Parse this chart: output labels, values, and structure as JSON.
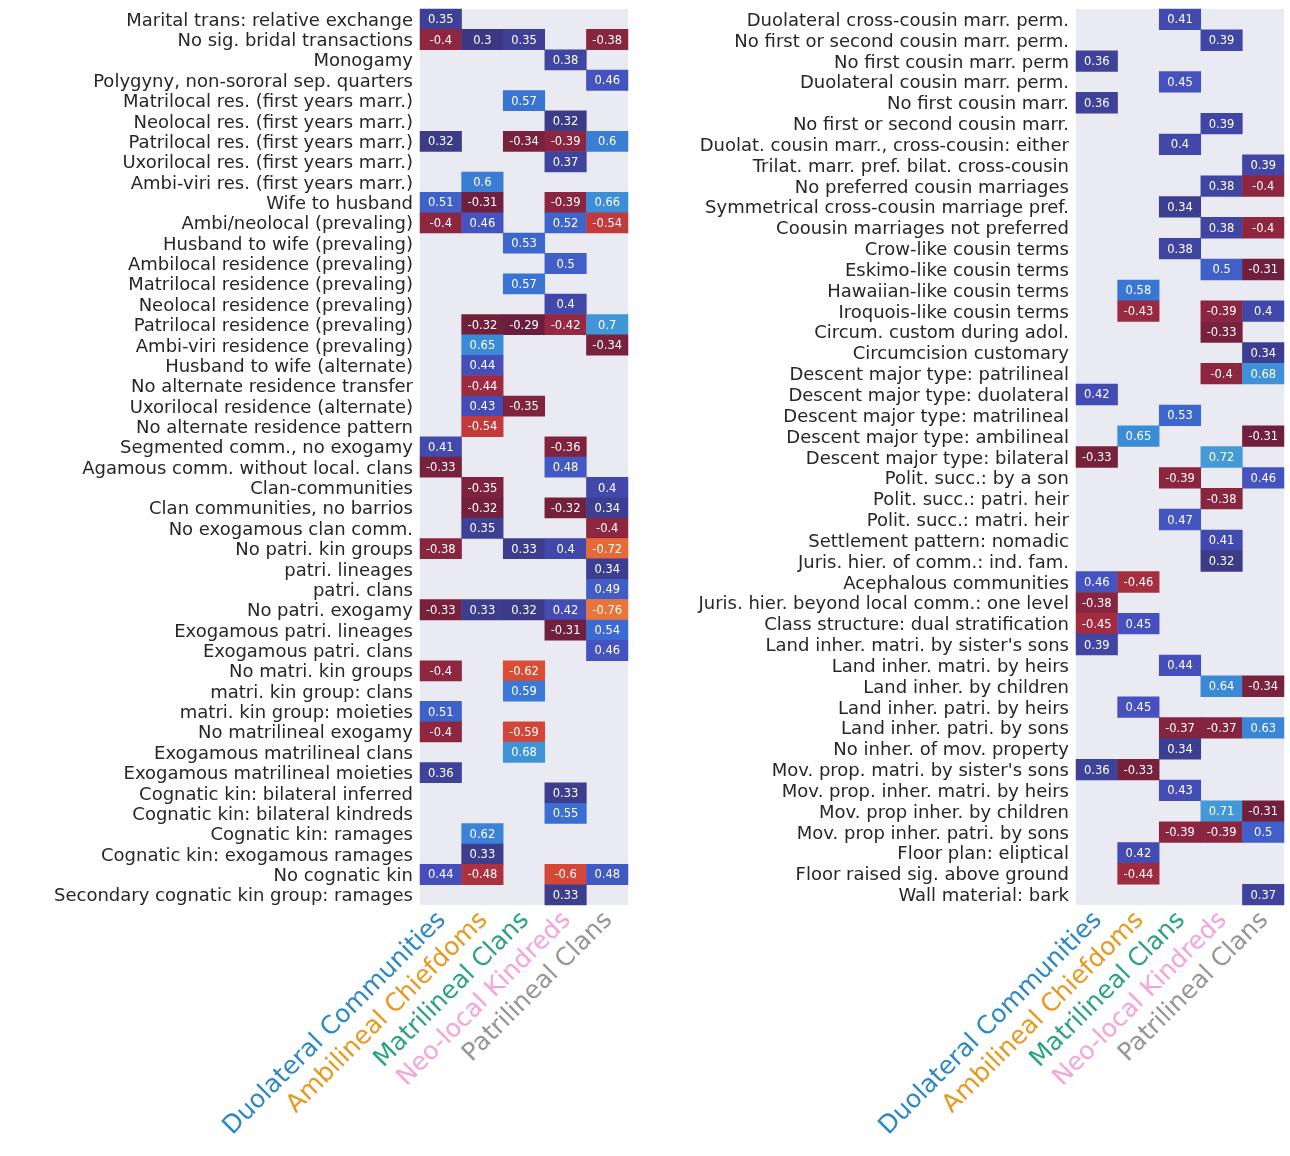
{
  "chart_data": [
    {
      "type": "heatmap",
      "data_labels": true,
      "categories": [
        "Duolateral Communities",
        "Ambilineal Chiefdoms",
        "Matrilineal Clans",
        "Neo-local Kindreds",
        "Patrilineal Clans"
      ],
      "colors": [
        "#2a88c6",
        "#e6981c",
        "#2aa37e",
        "#f5a3d8",
        "#969696"
      ],
      "y_categories": [
        "Marital trans: relative exchange",
        "No sig. bridal transactions",
        "Monogamy",
        "Polygyny, non-sororal sep. quarters",
        "Matrilocal res. (first years marr.)",
        "Neolocal res. (first years marr.)",
        "Patrilocal res. (first years marr.)",
        "Uxorilocal res. (first years marr.)",
        "Ambi-viri res. (first years marr.)",
        "Wife to husband",
        "Ambi/neolocal (prevaling)",
        "Husband to wife (prevaling)",
        "Ambilocal residence (prevaling)",
        "Matrilocal residence (prevaling)",
        "Neolocal residence (prevaling)",
        "Patrilocal residence (prevaling)",
        "Ambi-viri residence (prevaling)",
        "Husband to wife (alternate)",
        "No alternate residence transfer",
        "Uxorilocal residence (alternate)",
        "No alternate residence pattern",
        "Segmented comm., no exogamy",
        "Agamous comm. without local. clans",
        "Clan-communities",
        "Clan communities, no barrios",
        "No exogamous clan comm.",
        "No patri. kin groups",
        "patri. lineages",
        "patri. clans",
        "No patri. exogamy",
        "Exogamous patri. lineages",
        "Exogamous patri. clans",
        "No matri. kin groups",
        "matri. kin group: clans",
        "matri. kin group: moieties",
        "No matrilineal exogamy",
        "Exogamous matrilineal clans",
        "Exogamous matrilineal moieties",
        "Cognatic kin: bilateral inferred",
        "Cognatic kin: bilateral kindreds",
        "Cognatic kin: ramages",
        "Cognatic kin: exogamous ramages",
        "No cognatic kin",
        "Secondary cognatic kin group: ramages"
      ],
      "cells": [
        [
          0.35,
          null,
          null,
          null,
          null
        ],
        [
          -0.4,
          0.3,
          0.35,
          null,
          -0.38
        ],
        [
          null,
          null,
          null,
          0.38,
          null
        ],
        [
          null,
          null,
          null,
          null,
          0.46
        ],
        [
          null,
          null,
          0.57,
          null,
          null
        ],
        [
          null,
          null,
          null,
          0.32,
          null
        ],
        [
          0.32,
          null,
          -0.34,
          -0.39,
          0.6
        ],
        [
          null,
          null,
          null,
          0.37,
          null
        ],
        [
          null,
          0.6,
          null,
          null,
          null
        ],
        [
          0.51,
          -0.31,
          null,
          -0.39,
          0.66
        ],
        [
          -0.4,
          0.46,
          null,
          0.52,
          -0.54
        ],
        [
          null,
          null,
          0.53,
          null,
          null
        ],
        [
          null,
          null,
          null,
          0.5,
          null
        ],
        [
          null,
          null,
          0.57,
          null,
          null
        ],
        [
          null,
          null,
          null,
          0.4,
          null
        ],
        [
          null,
          -0.32,
          -0.29,
          -0.42,
          0.7
        ],
        [
          null,
          0.65,
          null,
          null,
          -0.34
        ],
        [
          null,
          0.44,
          null,
          null,
          null
        ],
        [
          null,
          -0.44,
          null,
          null,
          null
        ],
        [
          null,
          0.43,
          -0.35,
          null,
          null
        ],
        [
          null,
          -0.54,
          null,
          null,
          null
        ],
        [
          0.41,
          null,
          null,
          -0.36,
          null
        ],
        [
          -0.33,
          null,
          null,
          0.48,
          null
        ],
        [
          null,
          -0.35,
          null,
          null,
          0.4
        ],
        [
          null,
          -0.32,
          null,
          -0.32,
          0.34
        ],
        [
          null,
          0.35,
          null,
          null,
          -0.4
        ],
        [
          -0.38,
          null,
          0.33,
          0.4,
          -0.72
        ],
        [
          null,
          null,
          null,
          null,
          0.34
        ],
        [
          null,
          null,
          null,
          null,
          0.49
        ],
        [
          -0.33,
          0.33,
          0.32,
          0.42,
          -0.76
        ],
        [
          null,
          null,
          null,
          -0.31,
          0.54
        ],
        [
          null,
          null,
          null,
          null,
          0.46
        ],
        [
          -0.4,
          null,
          -0.62,
          null,
          null
        ],
        [
          null,
          null,
          0.59,
          null,
          null
        ],
        [
          0.51,
          null,
          null,
          null,
          null
        ],
        [
          -0.4,
          null,
          -0.59,
          null,
          null
        ],
        [
          null,
          null,
          0.68,
          null,
          null
        ],
        [
          0.36,
          null,
          null,
          null,
          null
        ],
        [
          null,
          null,
          null,
          0.33,
          null
        ],
        [
          null,
          null,
          null,
          0.55,
          null
        ],
        [
          null,
          0.62,
          null,
          null,
          null
        ],
        [
          null,
          0.33,
          null,
          null,
          null
        ],
        [
          0.44,
          -0.48,
          null,
          -0.6,
          0.48
        ],
        [
          null,
          null,
          null,
          0.33,
          null
        ]
      ]
    },
    {
      "type": "heatmap",
      "data_labels": true,
      "categories": [
        "Duolateral Communities",
        "Ambilineal Chiefdoms",
        "Matrilineal Clans",
        "Neo-local Kindreds",
        "Patrilineal Clans"
      ],
      "colors": [
        "#2a88c6",
        "#e6981c",
        "#2aa37e",
        "#f5a3d8",
        "#969696"
      ],
      "y_categories": [
        "Duolateral cross-cousin marr. perm.",
        "No first or second cousin marr. perm.",
        "No first cousin marr. perm",
        "Duolateral cousin marr. perm.",
        "No first cousin marr.",
        "No first or second cousin marr.",
        "Duolat. cousin marr., cross-cousin: either",
        "Trilat. marr. pref. bilat. cross-cousin",
        "No preferred cousin marriages",
        "Symmetrical cross-cousin marriage pref.",
        "Coousin marriages not preferred",
        "Crow-like cousin terms",
        "Eskimo-like cousin terms",
        "Hawaiian-like cousin terms",
        "Iroquois-like cousin terms",
        "Circum. custom during adol.",
        "Circumcision customary",
        "Descent major type: patrilineal",
        "Descent major type: duolateral",
        "Descent major type: matrilineal",
        "Descent major type: ambilineal",
        "Descent major type: bilateral",
        "Polit. succ.: by a son",
        "Polit. succ.: patri. heir",
        "Polit. succ.: matri. heir",
        "Settlement pattern: nomadic",
        "Juris. hier. of comm.: ind. fam.",
        "Acephalous communities",
        "Juris. hier. beyond local comm.: one level",
        "Class structure: dual stratification",
        "Land inher. matri. by sister's sons",
        "Land inher. matri. by heirs",
        "Land inher. by children",
        "Land inher. patri. by heirs",
        "Land inher. patri. by sons",
        "No inher. of mov. property",
        "Mov. prop. matri. by sister's sons",
        "Mov. prop. inher. matri. by heirs",
        "Mov. prop inher. by children",
        "Mov. prop inher. patri. by sons",
        "Floor plan: eliptical",
        "Floor raised sig. above ground",
        "Wall material: bark"
      ],
      "cells": [
        [
          null,
          null,
          0.41,
          null,
          null
        ],
        [
          null,
          null,
          null,
          0.39,
          null
        ],
        [
          0.36,
          null,
          null,
          null,
          null
        ],
        [
          null,
          null,
          0.45,
          null,
          null
        ],
        [
          0.36,
          null,
          null,
          null,
          null
        ],
        [
          null,
          null,
          null,
          0.39,
          null
        ],
        [
          null,
          null,
          0.4,
          null,
          null
        ],
        [
          null,
          null,
          null,
          null,
          0.39
        ],
        [
          null,
          null,
          null,
          0.38,
          -0.4
        ],
        [
          null,
          null,
          0.34,
          null,
          null
        ],
        [
          null,
          null,
          null,
          0.38,
          -0.4
        ],
        [
          null,
          null,
          0.38,
          null,
          null
        ],
        [
          null,
          null,
          null,
          0.5,
          -0.31
        ],
        [
          null,
          0.58,
          null,
          null,
          null
        ],
        [
          null,
          -0.43,
          null,
          -0.39,
          0.4
        ],
        [
          null,
          null,
          null,
          -0.33,
          null
        ],
        [
          null,
          null,
          null,
          null,
          0.34
        ],
        [
          null,
          null,
          null,
          -0.4,
          0.68
        ],
        [
          0.42,
          null,
          null,
          null,
          null
        ],
        [
          null,
          null,
          0.53,
          null,
          null
        ],
        [
          null,
          0.65,
          null,
          null,
          -0.31
        ],
        [
          -0.33,
          null,
          null,
          0.72,
          null
        ],
        [
          null,
          null,
          -0.39,
          null,
          0.46
        ],
        [
          null,
          null,
          null,
          -0.38,
          null
        ],
        [
          null,
          null,
          0.47,
          null,
          null
        ],
        [
          null,
          null,
          null,
          0.41,
          null
        ],
        [
          null,
          null,
          null,
          0.32,
          null
        ],
        [
          0.46,
          -0.46,
          null,
          null,
          null
        ],
        [
          -0.38,
          null,
          null,
          null,
          null
        ],
        [
          -0.45,
          0.45,
          null,
          null,
          null
        ],
        [
          0.39,
          null,
          null,
          null,
          null
        ],
        [
          null,
          null,
          0.44,
          null,
          null
        ],
        [
          null,
          null,
          null,
          0.64,
          -0.34
        ],
        [
          null,
          0.45,
          null,
          null,
          null
        ],
        [
          null,
          null,
          -0.37,
          -0.37,
          0.63
        ],
        [
          null,
          null,
          0.34,
          null,
          null
        ],
        [
          0.36,
          -0.33,
          null,
          null,
          null
        ],
        [
          null,
          null,
          0.43,
          null,
          null
        ],
        [
          null,
          null,
          null,
          0.71,
          -0.31
        ],
        [
          null,
          null,
          -0.39,
          -0.39,
          0.5
        ],
        [
          null,
          0.42,
          null,
          null,
          null
        ],
        [
          null,
          -0.44,
          null,
          null,
          null
        ],
        [
          null,
          null,
          null,
          null,
          0.37
        ]
      ]
    }
  ]
}
